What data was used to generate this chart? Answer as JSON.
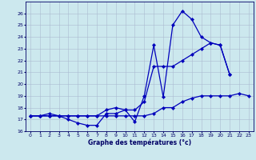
{
  "xlabel": "Graphe des températures (°c)",
  "background_color": "#cce8ee",
  "grid_color": "#aabbd0",
  "line_color": "#0000bb",
  "hours": [
    0,
    1,
    2,
    3,
    4,
    5,
    6,
    7,
    8,
    9,
    10,
    11,
    12,
    13,
    14,
    15,
    16,
    17,
    18,
    19,
    20,
    21,
    22,
    23
  ],
  "line1": [
    17.3,
    17.3,
    17.5,
    17.3,
    17.0,
    16.7,
    16.5,
    16.5,
    17.5,
    17.5,
    17.8,
    16.8,
    19.0,
    23.3,
    18.9,
    25.0,
    26.2,
    25.5,
    24.0,
    23.5,
    23.3,
    20.8,
    null,
    null
  ],
  "line2": [
    17.3,
    17.3,
    17.3,
    17.3,
    17.3,
    17.3,
    17.3,
    17.3,
    17.8,
    18.0,
    17.8,
    17.8,
    18.5,
    21.5,
    21.5,
    21.5,
    22.0,
    22.5,
    23.0,
    23.5,
    23.3,
    20.8,
    null,
    null
  ],
  "line3": [
    17.3,
    17.3,
    17.3,
    17.3,
    17.3,
    17.3,
    17.3,
    17.3,
    17.3,
    17.3,
    17.3,
    17.3,
    17.3,
    17.5,
    18.0,
    18.0,
    18.5,
    18.8,
    19.0,
    19.0,
    19.0,
    19.0,
    19.2,
    19.0
  ],
  "ylim": [
    16,
    27
  ],
  "yticks": [
    16,
    17,
    18,
    19,
    20,
    21,
    22,
    23,
    24,
    25,
    26
  ],
  "xlim": [
    -0.5,
    23.5
  ],
  "xticks": [
    0,
    1,
    2,
    3,
    4,
    5,
    6,
    7,
    8,
    9,
    10,
    11,
    12,
    13,
    14,
    15,
    16,
    17,
    18,
    19,
    20,
    21,
    22,
    23
  ]
}
